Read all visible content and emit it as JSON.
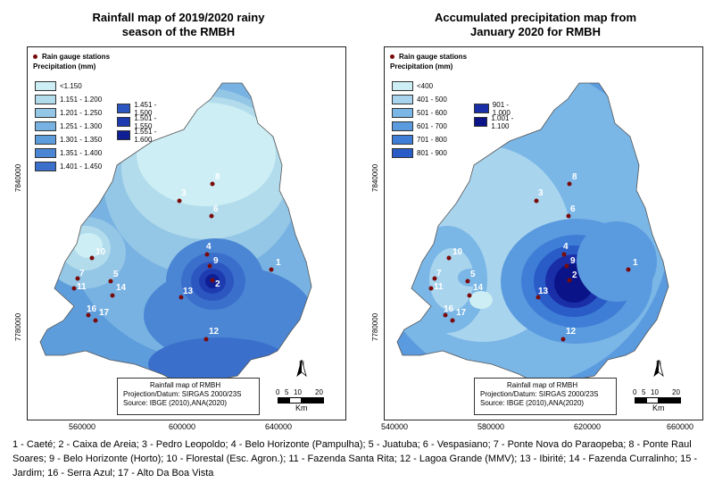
{
  "maps": [
    {
      "title_line1": "Rainfall map of 2019/2020 rainy",
      "title_line2": "season of the RMBH",
      "gauge_label": "Rain gauge stations",
      "legend_title": "Precipitation (mm)",
      "classes": [
        {
          "label": "<1.150",
          "color": "#cdeef4"
        },
        {
          "label": "1.151 - 1.200",
          "color": "#b2dcec"
        },
        {
          "label": "1.201 - 1.250",
          "color": "#94c6e6"
        },
        {
          "label": "1.251 - 1.300",
          "color": "#78b2e2"
        },
        {
          "label": "1.301 - 1.350",
          "color": "#5e9ddc"
        },
        {
          "label": "1.351 - 1.400",
          "color": "#4a86d4"
        },
        {
          "label": "1.401 - 1.450",
          "color": "#3a6fcc"
        },
        {
          "label": "1.451 - 1.500",
          "color": "#2c56c0"
        },
        {
          "label": "1.501 - 1.550",
          "color": "#1e3cb0"
        },
        {
          "label": "1.551 - 1.600",
          "color": "#0e1e94"
        }
      ],
      "y_ticks": [
        "7840000",
        "7780000"
      ],
      "x_ticks": [
        "560000",
        "600000",
        "640000"
      ],
      "info_title": "Rainfall map of RMBH",
      "info_line1": "Projection/Datum: SIRGAS 2000/23S",
      "info_line2": "Source: IBGE (2010),ANA(2020)",
      "north_label": "N",
      "scale_ticks": [
        "0",
        "5",
        "10",
        "20"
      ],
      "scale_unit": "Km"
    },
    {
      "title_line1": "Accumulated precipitation map from",
      "title_line2": "January 2020 for RMBH",
      "gauge_label": "Rain gauge stations",
      "legend_title": "Precipitation (mm)",
      "classes": [
        {
          "label": "<400",
          "color": "#cdeef4"
        },
        {
          "label": "401 - 500",
          "color": "#a8d4ee"
        },
        {
          "label": "501 - 600",
          "color": "#7ab6e6"
        },
        {
          "label": "601 - 700",
          "color": "#5a9ade"
        },
        {
          "label": "701 - 800",
          "color": "#3e7ed6"
        },
        {
          "label": "801 - 900",
          "color": "#2a5cc8"
        },
        {
          "label": "901 - 1.000",
          "color": "#1a2ea8"
        },
        {
          "label": "1.001 - 1.100",
          "color": "#0a1488"
        }
      ],
      "y_ticks": [
        "7840000",
        "7780000"
      ],
      "x_ticks": [
        "540000",
        "580000",
        "620000",
        "660000"
      ],
      "info_title": "Rainfall map of RMBH",
      "info_line1": "Projection/Datum: SIRGAS 2000/23S",
      "info_line2": "Source: IBGE (2010),ANA(2020)",
      "north_label": "N",
      "scale_ticks": [
        "0",
        "5",
        "10",
        "20"
      ],
      "scale_unit": "Km"
    }
  ],
  "stations": [
    "1",
    "2",
    "3",
    "4",
    "5",
    "6",
    "7",
    "8",
    "9",
    "10",
    "11",
    "12",
    "13",
    "14",
    "16",
    "17"
  ],
  "caption": "1 - Caeté; 2 - Caixa de Areia; 3 - Pedro Leopoldo; 4 - Belo Horizonte (Pampulha); 5 - Juatuba; 6 - Vespasiano; 7 - Ponte Nova do Paraopeba; 8 - Ponte Raul Soares; 9 - Belo Horizonte (Horto); 10 - Florestal (Esc. Agron.); 11 - Fazenda Santa Rita; 12 - Lagoa Grande (MMV); 13 - Ibirité; 14 - Fazenda Curralinho; 15 - Jardim; 16 - Serra Azul; 17 - Alto Da Boa Vista"
}
